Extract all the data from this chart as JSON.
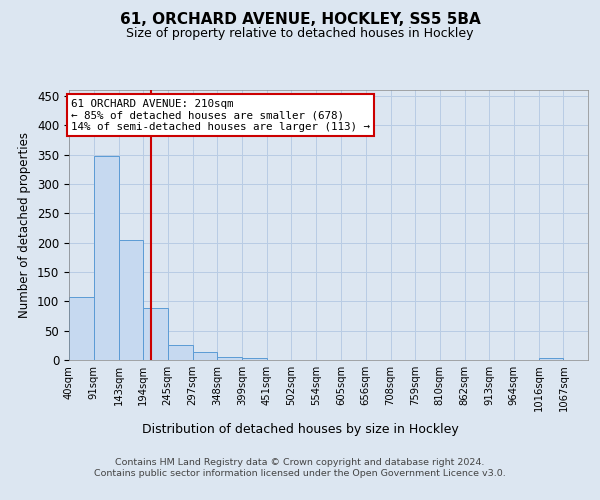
{
  "title": "61, ORCHARD AVENUE, HOCKLEY, SS5 5BA",
  "subtitle": "Size of property relative to detached houses in Hockley",
  "xlabel": "Distribution of detached houses by size in Hockley",
  "ylabel": "Number of detached properties",
  "bin_labels": [
    "40sqm",
    "91sqm",
    "143sqm",
    "194sqm",
    "245sqm",
    "297sqm",
    "348sqm",
    "399sqm",
    "451sqm",
    "502sqm",
    "554sqm",
    "605sqm",
    "656sqm",
    "708sqm",
    "759sqm",
    "810sqm",
    "862sqm",
    "913sqm",
    "964sqm",
    "1016sqm",
    "1067sqm"
  ],
  "bar_heights": [
    107,
    347,
    204,
    88,
    25,
    13,
    5,
    3,
    0,
    0,
    0,
    0,
    0,
    0,
    0,
    0,
    0,
    0,
    0,
    4,
    0
  ],
  "bar_color": "#c6d9f0",
  "bar_edge_color": "#5b9bd5",
  "vline_x": 210,
  "vline_color": "#cc0000",
  "annotation_line1": "61 ORCHARD AVENUE: 210sqm",
  "annotation_line2": "← 85% of detached houses are smaller (678)",
  "annotation_line3": "14% of semi-detached houses are larger (113) →",
  "annotation_box_color": "#ffffff",
  "annotation_box_edge": "#cc0000",
  "ylim": [
    0,
    460
  ],
  "yticks": [
    0,
    50,
    100,
    150,
    200,
    250,
    300,
    350,
    400,
    450
  ],
  "background_color": "#dce6f1",
  "plot_bg_color": "#dce6f1",
  "grid_color": "#b8cce4",
  "footer_text": "Contains HM Land Registry data © Crown copyright and database right 2024.\nContains public sector information licensed under the Open Government Licence v3.0.",
  "bin_edges": [
    40,
    91,
    143,
    194,
    245,
    297,
    348,
    399,
    451,
    502,
    554,
    605,
    656,
    708,
    759,
    810,
    862,
    913,
    964,
    1016,
    1067,
    1118
  ]
}
